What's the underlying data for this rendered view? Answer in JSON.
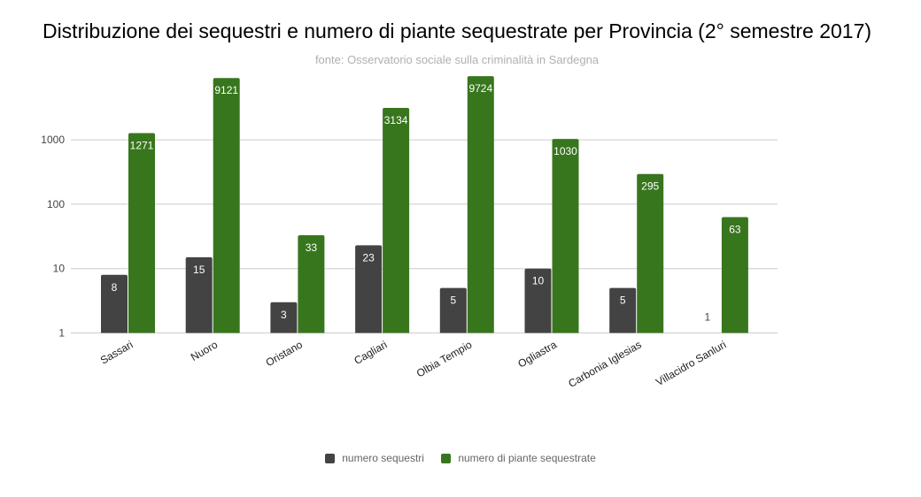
{
  "chart_data": {
    "type": "bar",
    "title": "Distribuzione dei sequestri e numero di piante sequestrate per Provincia (2° semestre 2017)",
    "subtitle": "fonte: Osservatorio sociale sulla criminalità in Sardegna",
    "categories": [
      "Sassari",
      "Nuoro",
      "Oristano",
      "Cagliari",
      "Olbia Tempio",
      "Ogliastra",
      "Carbonia Iglesias",
      "Villacidro Sanluri"
    ],
    "series": [
      {
        "name": "numero sequestri",
        "color": "#434343",
        "values": [
          8,
          15,
          3,
          23,
          5,
          10,
          5,
          1
        ]
      },
      {
        "name": "numero di piante sequestrate",
        "color": "#38761d",
        "values": [
          1271,
          9121,
          33,
          3134,
          9724,
          1030,
          295,
          63
        ]
      }
    ],
    "y_scale": "log",
    "yticks": [
      "1",
      "10",
      "100",
      "1000"
    ],
    "grid": true,
    "legend": "bottom",
    "data_labels": true
  }
}
